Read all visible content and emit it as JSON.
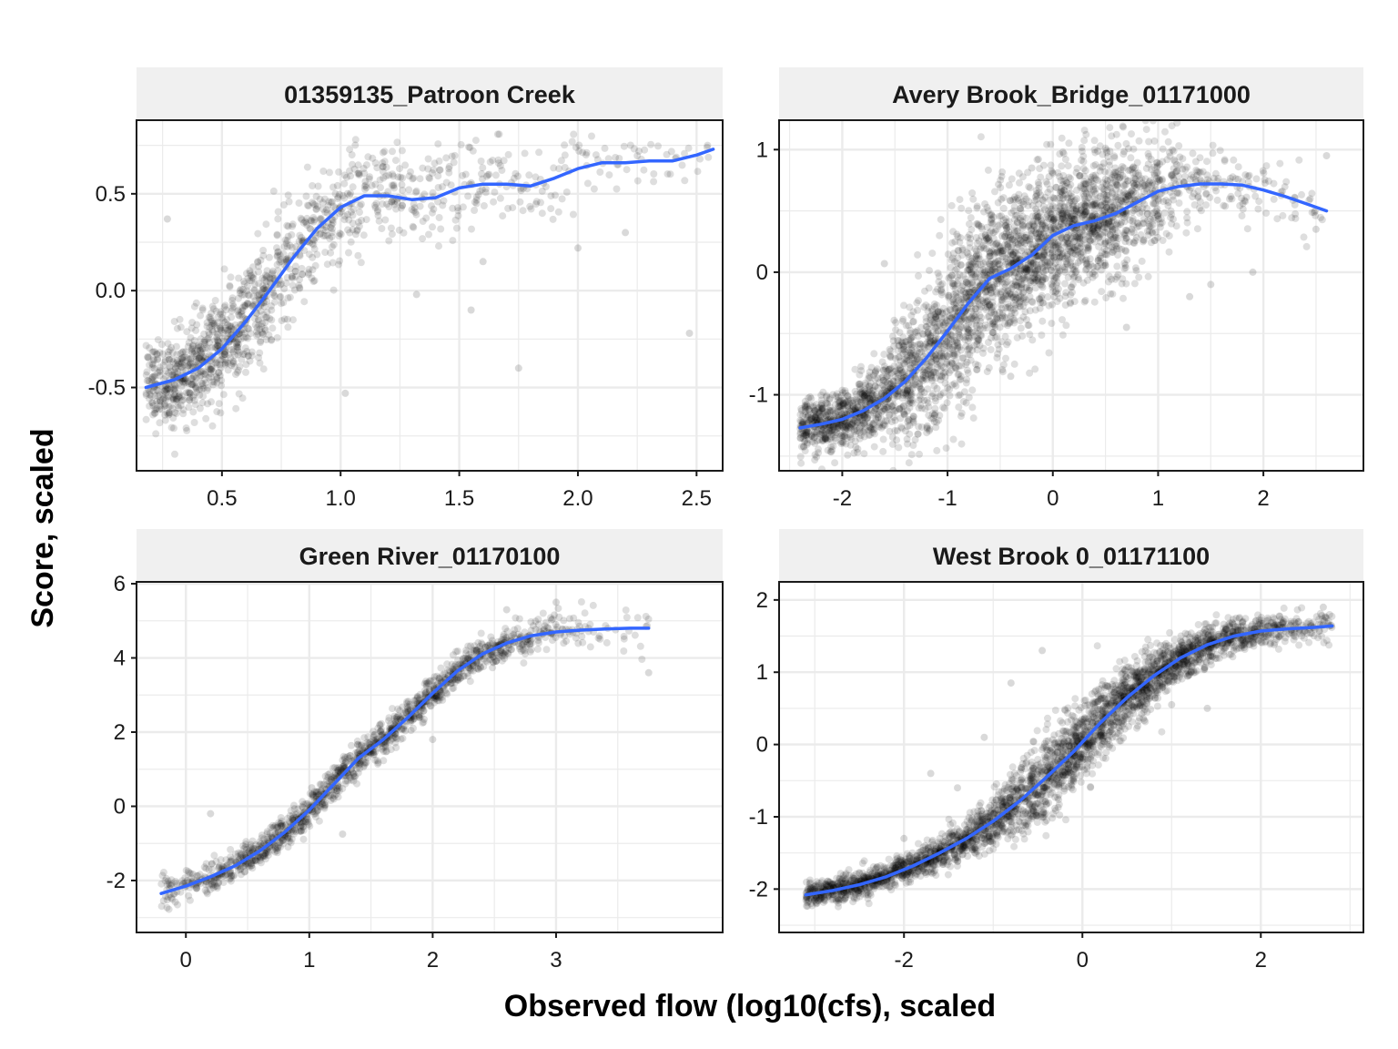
{
  "figure": {
    "xlabel": "Observed flow (log10(cfs), scaled",
    "ylabel": "Score, scaled"
  },
  "colors": {
    "points": "#000000",
    "smooth_line": "#3366FF",
    "strip_background": "#F0F0F0",
    "grid": "#EBEBEB",
    "panel_border": "#1a1a1a"
  },
  "chart_data": [
    {
      "type": "scatter",
      "title": "01359135_Patroon Creek",
      "xlim": [
        0.14,
        2.61
      ],
      "ylim": [
        -0.93,
        0.88
      ],
      "xticks": [
        0.5,
        1.0,
        1.5,
        2.0,
        2.5
      ],
      "xtick_labels": [
        "0.5",
        "1.0",
        "1.5",
        "2.0",
        "2.5"
      ],
      "yticks": [
        -0.5,
        0.0,
        0.5
      ],
      "ytick_labels": [
        "-0.5",
        "0.0",
        "0.5"
      ],
      "smooth": {
        "x": [
          0.18,
          0.3,
          0.4,
          0.5,
          0.6,
          0.7,
          0.8,
          0.9,
          1.0,
          1.1,
          1.2,
          1.3,
          1.4,
          1.5,
          1.6,
          1.7,
          1.8,
          1.9,
          2.0,
          2.1,
          2.2,
          2.3,
          2.4,
          2.5,
          2.57
        ],
        "y": [
          -0.5,
          -0.46,
          -0.4,
          -0.3,
          -0.16,
          0.0,
          0.17,
          0.32,
          0.43,
          0.49,
          0.49,
          0.47,
          0.48,
          0.53,
          0.55,
          0.55,
          0.54,
          0.58,
          0.63,
          0.66,
          0.66,
          0.67,
          0.67,
          0.7,
          0.73
        ]
      },
      "scatter": {
        "x": [
          0.18,
          0.3,
          0.4,
          0.5,
          0.6,
          0.7,
          0.8,
          0.9,
          1.0,
          1.1,
          1.2,
          1.3,
          1.4,
          1.5,
          1.6,
          1.7,
          1.8,
          1.9,
          2.0,
          2.1,
          2.2,
          2.3,
          2.4,
          2.5,
          2.57
        ],
        "spread": [
          0.12,
          0.13,
          0.14,
          0.15,
          0.17,
          0.18,
          0.18,
          0.17,
          0.16,
          0.15,
          0.15,
          0.15,
          0.15,
          0.15,
          0.14,
          0.13,
          0.12,
          0.11,
          0.1,
          0.09,
          0.08,
          0.08,
          0.07,
          0.06,
          0.05
        ],
        "density": [
          150,
          150,
          150,
          140,
          120,
          90,
          75,
          65,
          55,
          45,
          40,
          35,
          30,
          26,
          22,
          18,
          16,
          14,
          12,
          10,
          9,
          8,
          6,
          5,
          4
        ],
        "outliers": [
          [
            1.02,
            -0.53
          ],
          [
            1.75,
            -0.4
          ],
          [
            2.47,
            -0.22
          ],
          [
            1.55,
            -0.1
          ],
          [
            1.32,
            -0.02
          ],
          [
            2.0,
            0.22
          ],
          [
            1.6,
            0.15
          ],
          [
            2.2,
            0.3
          ],
          [
            0.27,
            0.37
          ]
        ]
      }
    },
    {
      "type": "scatter",
      "title": "Avery Brook_Bridge_01171000",
      "xlim": [
        -2.6,
        2.95
      ],
      "ylim": [
        -1.62,
        1.24
      ],
      "xticks": [
        -2,
        -1,
        0,
        1,
        2
      ],
      "xtick_labels": [
        "-2",
        "-1",
        "0",
        "1",
        "2"
      ],
      "yticks": [
        -1,
        0,
        1
      ],
      "ytick_labels": [
        "-1",
        "0",
        "1"
      ],
      "smooth": {
        "x": [
          -2.4,
          -2.2,
          -2.0,
          -1.8,
          -1.6,
          -1.4,
          -1.2,
          -1.0,
          -0.8,
          -0.6,
          -0.4,
          -0.2,
          0.0,
          0.2,
          0.4,
          0.6,
          0.8,
          1.0,
          1.2,
          1.4,
          1.6,
          1.8,
          2.0,
          2.2,
          2.4,
          2.6
        ],
        "y": [
          -1.27,
          -1.24,
          -1.2,
          -1.13,
          -1.03,
          -0.89,
          -0.7,
          -0.48,
          -0.25,
          -0.05,
          0.03,
          0.14,
          0.3,
          0.38,
          0.42,
          0.48,
          0.57,
          0.66,
          0.7,
          0.72,
          0.72,
          0.71,
          0.67,
          0.62,
          0.56,
          0.5
        ]
      },
      "scatter": {
        "x": [
          -2.4,
          -2.2,
          -2.0,
          -1.8,
          -1.6,
          -1.4,
          -1.2,
          -1.0,
          -0.8,
          -0.6,
          -0.4,
          -0.2,
          0.0,
          0.2,
          0.4,
          0.6,
          0.8,
          1.0,
          1.2,
          1.4,
          1.6,
          1.8,
          2.0,
          2.2,
          2.4,
          2.6
        ],
        "spread": [
          0.12,
          0.13,
          0.14,
          0.17,
          0.22,
          0.3,
          0.38,
          0.42,
          0.42,
          0.4,
          0.38,
          0.36,
          0.36,
          0.36,
          0.34,
          0.32,
          0.3,
          0.26,
          0.22,
          0.2,
          0.18,
          0.17,
          0.16,
          0.16,
          0.16,
          0.16
        ],
        "density": [
          150,
          160,
          160,
          160,
          170,
          180,
          200,
          220,
          230,
          230,
          230,
          230,
          230,
          220,
          200,
          160,
          110,
          70,
          40,
          28,
          22,
          18,
          14,
          12,
          10,
          8
        ],
        "outliers": [
          [
            -1.1,
            -0.95
          ],
          [
            -0.4,
            -0.85
          ],
          [
            0.7,
            -0.45
          ],
          [
            1.3,
            -0.2
          ],
          [
            1.5,
            -0.1
          ],
          [
            1.9,
            0.0
          ],
          [
            2.5,
            0.35
          ],
          [
            2.6,
            0.95
          ],
          [
            -1.6,
            0.07
          ],
          [
            -0.2,
            0.85
          ]
        ]
      }
    },
    {
      "type": "scatter",
      "title": "Green River_01170100",
      "xlim": [
        -0.4,
        4.35
      ],
      "ylim": [
        -3.4,
        6.05
      ],
      "xticks": [
        0,
        1,
        2,
        3
      ],
      "xtick_labels": [
        "0",
        "1",
        "2",
        "3"
      ],
      "yticks": [
        -2,
        0,
        2,
        4,
        6
      ],
      "ytick_labels": [
        "-2",
        "0",
        "2",
        "4",
        "6"
      ],
      "smooth": {
        "x": [
          -0.2,
          0.0,
          0.2,
          0.4,
          0.6,
          0.8,
          1.0,
          1.2,
          1.4,
          1.6,
          1.8,
          2.0,
          2.2,
          2.4,
          2.6,
          2.8,
          3.0,
          3.2,
          3.4,
          3.6,
          3.75
        ],
        "y": [
          -2.35,
          -2.15,
          -1.9,
          -1.6,
          -1.2,
          -0.7,
          -0.1,
          0.6,
          1.3,
          1.8,
          2.4,
          3.05,
          3.65,
          4.1,
          4.4,
          4.6,
          4.7,
          4.75,
          4.78,
          4.8,
          4.8
        ]
      },
      "scatter": {
        "x": [
          -0.2,
          0.0,
          0.2,
          0.4,
          0.6,
          0.8,
          1.0,
          1.2,
          1.4,
          1.6,
          1.8,
          2.0,
          2.2,
          2.4,
          2.6,
          2.8,
          3.0,
          3.2,
          3.4,
          3.6,
          3.75
        ],
        "spread": [
          0.3,
          0.22,
          0.22,
          0.24,
          0.26,
          0.26,
          0.26,
          0.26,
          0.26,
          0.26,
          0.26,
          0.26,
          0.26,
          0.26,
          0.28,
          0.3,
          0.3,
          0.3,
          0.32,
          0.34,
          0.36
        ],
        "density": [
          40,
          50,
          70,
          90,
          100,
          100,
          100,
          100,
          100,
          100,
          100,
          100,
          90,
          80,
          60,
          40,
          25,
          15,
          10,
          8,
          6
        ],
        "outliers": [
          [
            0.2,
            -0.2
          ],
          [
            1.27,
            -0.75
          ],
          [
            1.02,
            0.5
          ],
          [
            1.95,
            3.3
          ],
          [
            2.0,
            1.8
          ],
          [
            3.75,
            3.6
          ],
          [
            2.6,
            5.3
          ],
          [
            3.0,
            5.5
          ]
        ]
      }
    },
    {
      "type": "scatter",
      "title": "West Brook 0_01171100",
      "xlim": [
        -3.4,
        3.15
      ],
      "ylim": [
        -2.6,
        2.25
      ],
      "xticks": [
        -2,
        0,
        2
      ],
      "xtick_labels": [
        "-2",
        "0",
        "2"
      ],
      "yticks": [
        -2,
        -1,
        0,
        1,
        2
      ],
      "ytick_labels": [
        "-2",
        "-1",
        "0",
        "1",
        "2"
      ],
      "smooth": {
        "x": [
          -3.1,
          -2.8,
          -2.5,
          -2.2,
          -1.9,
          -1.6,
          -1.3,
          -1.0,
          -0.7,
          -0.4,
          -0.1,
          0.2,
          0.5,
          0.8,
          1.1,
          1.4,
          1.7,
          2.0,
          2.3,
          2.6,
          2.8
        ],
        "y": [
          -2.08,
          -2.02,
          -1.94,
          -1.83,
          -1.68,
          -1.5,
          -1.3,
          -1.06,
          -0.78,
          -0.45,
          -0.1,
          0.3,
          0.65,
          0.95,
          1.2,
          1.38,
          1.5,
          1.57,
          1.6,
          1.62,
          1.64
        ]
      },
      "scatter": {
        "x": [
          -3.1,
          -2.8,
          -2.5,
          -2.2,
          -1.9,
          -1.6,
          -1.3,
          -1.0,
          -0.7,
          -0.4,
          -0.1,
          0.2,
          0.5,
          0.8,
          1.1,
          1.4,
          1.7,
          2.0,
          2.3,
          2.6,
          2.8
        ],
        "spread": [
          0.1,
          0.1,
          0.1,
          0.11,
          0.12,
          0.14,
          0.16,
          0.2,
          0.26,
          0.34,
          0.34,
          0.3,
          0.26,
          0.22,
          0.18,
          0.16,
          0.14,
          0.12,
          0.12,
          0.12,
          0.12
        ],
        "density": [
          140,
          150,
          150,
          150,
          150,
          160,
          170,
          190,
          210,
          230,
          240,
          240,
          230,
          210,
          180,
          150,
          110,
          80,
          50,
          30,
          20
        ],
        "outliers": [
          [
            -1.7,
            -0.4
          ],
          [
            -1.1,
            0.1
          ],
          [
            -0.8,
            0.85
          ],
          [
            -0.45,
            1.3
          ],
          [
            1.0,
            0.55
          ],
          [
            1.4,
            0.5
          ],
          [
            2.7,
            1.9
          ],
          [
            -2.0,
            -1.3
          ],
          [
            -1.4,
            -0.6
          ]
        ]
      }
    }
  ]
}
